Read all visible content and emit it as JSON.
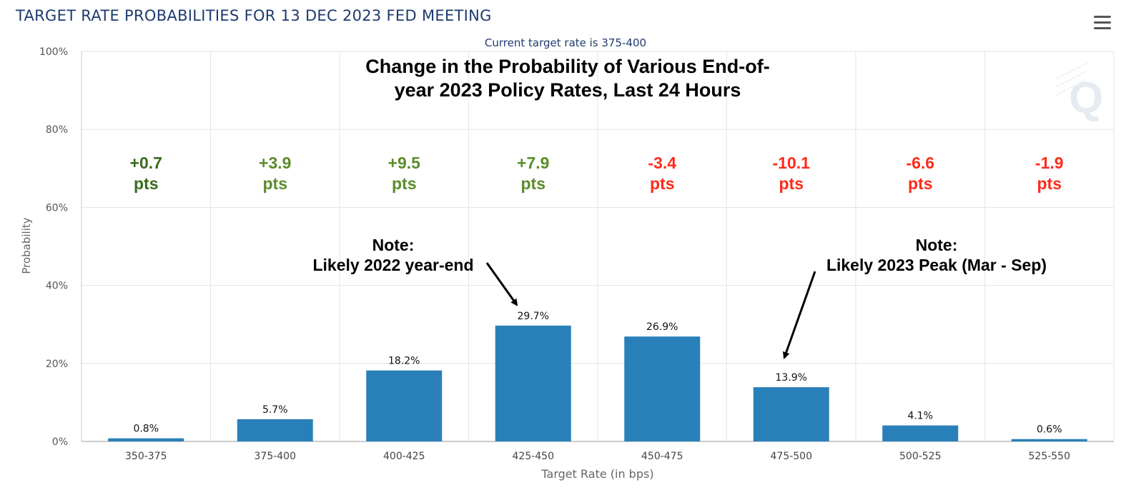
{
  "header": {
    "title": "TARGET RATE PROBABILITIES FOR 13 DEC 2023 FED MEETING",
    "menu_icon": "hamburger-menu-icon"
  },
  "chart_data": {
    "type": "bar",
    "title": "TARGET RATE PROBABILITIES FOR 13 DEC 2023 FED MEETING",
    "subtitle": "Current target rate is 375-400",
    "xlabel": "Target Rate (in bps)",
    "ylabel": "Probability",
    "categories": [
      "350-375",
      "375-400",
      "400-425",
      "425-450",
      "450-475",
      "475-500",
      "500-525",
      "525-550"
    ],
    "values": [
      0.8,
      5.7,
      18.2,
      29.7,
      26.9,
      13.9,
      4.1,
      0.6
    ],
    "value_labels": [
      "0.8%",
      "5.7%",
      "18.2%",
      "29.7%",
      "26.9%",
      "13.9%",
      "4.1%",
      "0.6%"
    ],
    "ylim": [
      0,
      100
    ],
    "yticks": [
      0,
      20,
      40,
      60,
      80,
      100
    ],
    "ytick_labels": [
      "0%",
      "20%",
      "40%",
      "60%",
      "80%",
      "100%"
    ],
    "grid": true,
    "bar_color": "#2980b9",
    "annotation_title": [
      "Change in the Probability of Various End-of-",
      "year 2023 Policy Rates, Last 24 Hours"
    ],
    "changes": [
      {
        "value": "+0.7",
        "unit": "pts",
        "color": "#3a6b1e"
      },
      {
        "value": "+3.9",
        "unit": "pts",
        "color": "#5b8c2a"
      },
      {
        "value": "+9.5",
        "unit": "pts",
        "color": "#5b8c2a"
      },
      {
        "value": "+7.9",
        "unit": "pts",
        "color": "#5b8c2a"
      },
      {
        "value": "-3.4",
        "unit": "pts",
        "color": "#ff2a1a"
      },
      {
        "value": "-10.1",
        "unit": "pts",
        "color": "#ff2a1a"
      },
      {
        "value": "-6.6",
        "unit": "pts",
        "color": "#ff2a1a"
      },
      {
        "value": "-1.9",
        "unit": "pts",
        "color": "#ff2a1a"
      }
    ],
    "notes": [
      {
        "lines": [
          "Note:",
          "Likely 2022 year-end"
        ],
        "points_to": "425-450"
      },
      {
        "lines": [
          "Note:",
          "Likely 2023 Peak (Mar - Sep)"
        ],
        "points_to": "475-500"
      }
    ]
  }
}
